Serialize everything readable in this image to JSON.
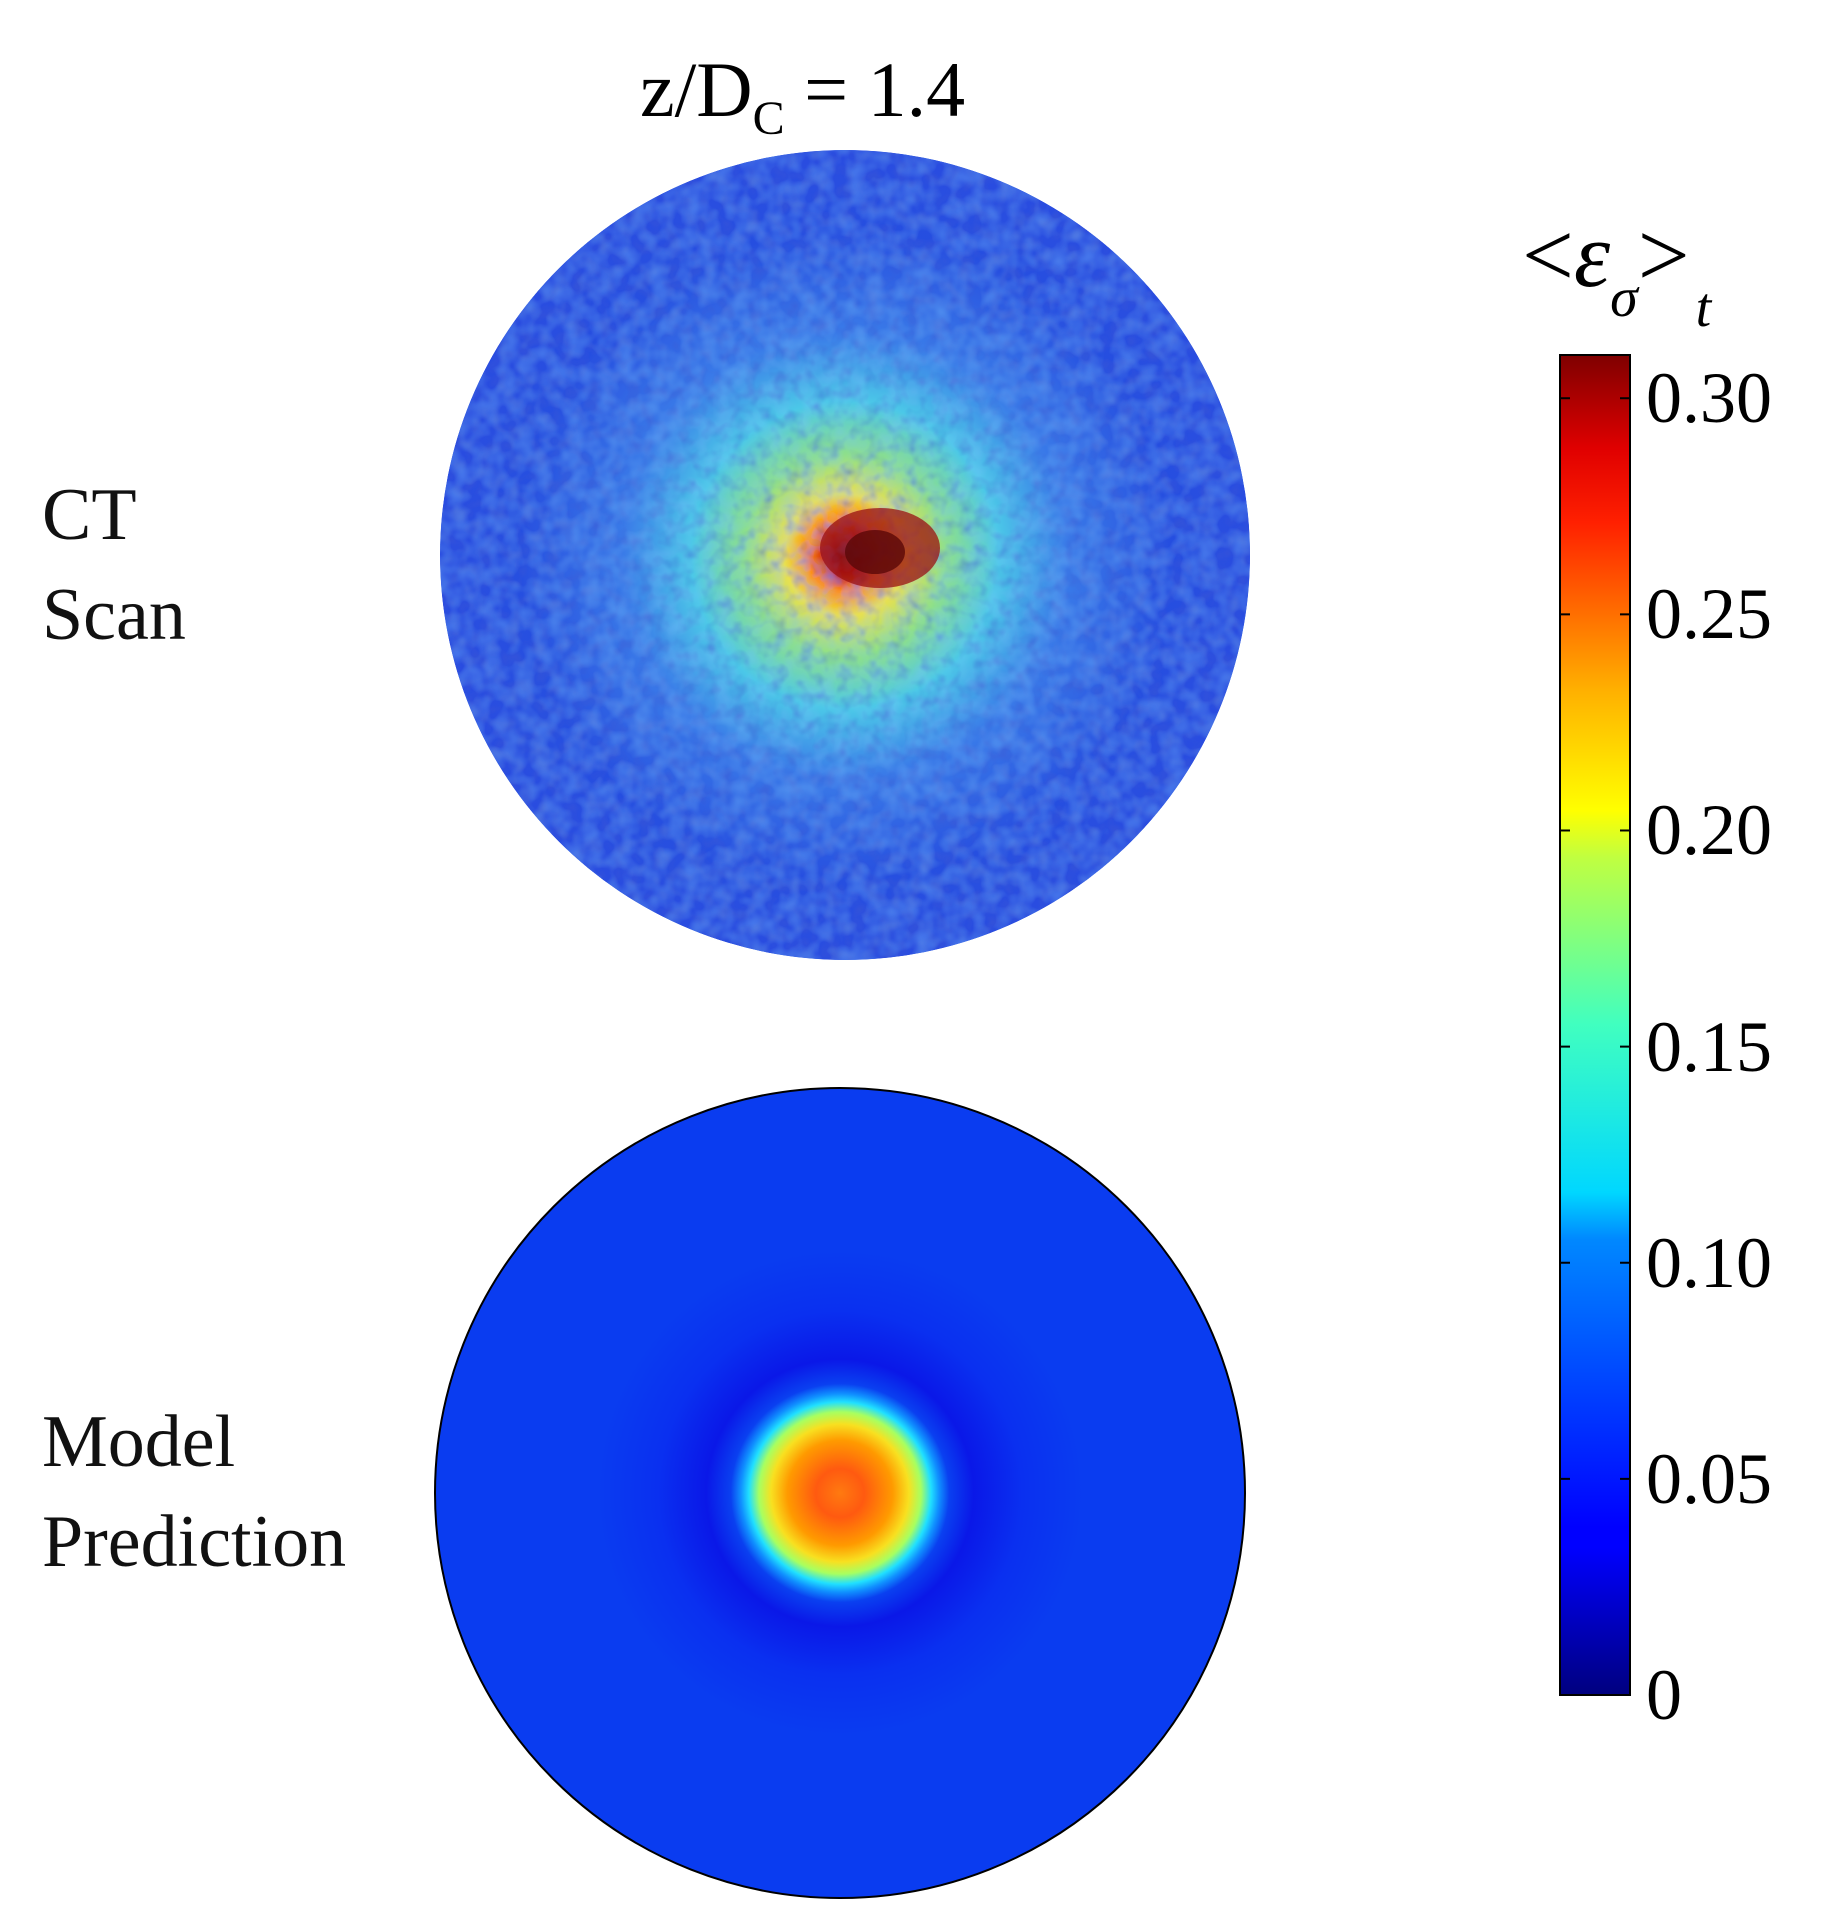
{
  "title": {
    "main": "z/D",
    "sub": "C",
    "rest": " = 1.4"
  },
  "panels": [
    {
      "label_lines": [
        "CT",
        "Scan"
      ]
    },
    {
      "label_lines": [
        "Model",
        "Prediction"
      ]
    }
  ],
  "colorbar": {
    "label": {
      "lt": "<",
      "epsilon": "ε",
      "sigma": "σ",
      "gt": ">",
      "sub": "t"
    },
    "ticks": [
      "0",
      "0.05",
      "0.10",
      "0.15",
      "0.20",
      "0.25",
      "0.30"
    ],
    "colormap": "jet"
  },
  "chart_data": {
    "type": "heatmap",
    "title": "z/DC = 1.4",
    "colorbar_label": "<εσ>t",
    "colorbar_range": [
      0,
      0.31
    ],
    "colorbar_ticks": [
      0,
      0.05,
      0.1,
      0.15,
      0.2,
      0.25,
      0.3
    ],
    "panels": [
      {
        "name": "CT Scan",
        "description_values": {
          "wall_mean": 0.05,
          "center_peak": 0.3,
          "mid_ring": 0.15
        },
        "radial_profile": {
          "r": [
            0,
            0.1,
            0.2,
            0.35,
            0.5,
            0.7,
            1.0
          ],
          "value": [
            0.3,
            0.22,
            0.17,
            0.12,
            0.08,
            0.06,
            0.05
          ]
        }
      },
      {
        "name": "Model Prediction",
        "radial_profile": {
          "r": [
            0,
            0.1,
            0.15,
            0.22,
            0.26,
            0.32,
            0.45,
            0.6,
            1.0
          ],
          "value": [
            0.23,
            0.23,
            0.21,
            0.15,
            0.06,
            0.03,
            0.045,
            0.05,
            0.05
          ]
        }
      }
    ]
  }
}
